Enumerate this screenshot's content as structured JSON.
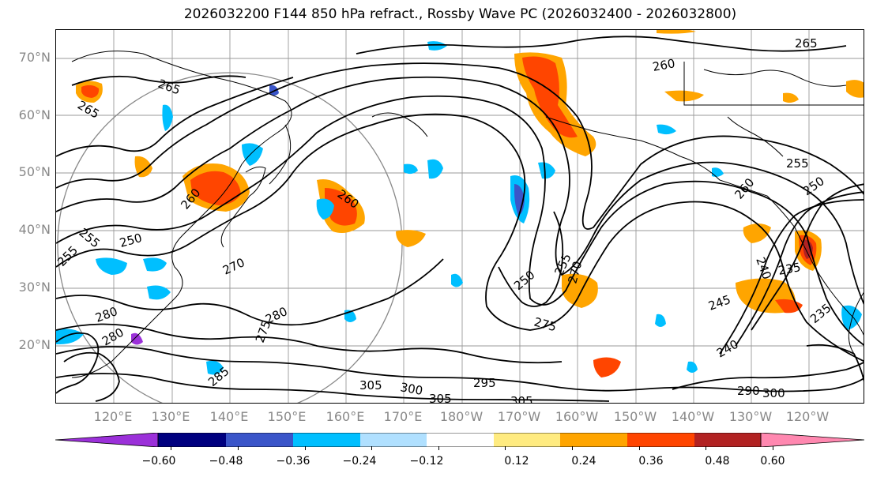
{
  "title": "2026032200 F144 850 hPa refract., Rossby Wave PC (2026032400 - 2026032800)",
  "lat_labels": [
    "70°N",
    "60°N",
    "50°N",
    "40°N",
    "30°N",
    "20°N"
  ],
  "lon_labels": [
    "120°E",
    "130°E",
    "140°E",
    "150°E",
    "160°E",
    "170°E",
    "180°W",
    "170°W",
    "160°W",
    "150°W",
    "140°W",
    "130°W",
    "120°W"
  ],
  "colorbar": {
    "tick_labels": [
      "−0.60",
      "−0.48",
      "−0.36",
      "−0.24",
      "−0.12",
      "0.12",
      "0.24",
      "0.36",
      "0.48",
      "0.60"
    ],
    "colors": [
      "#9b30d9",
      "#00007f",
      "#3a55c9",
      "#00bfff",
      "#b0e0ff",
      "#ffffff",
      "#ffeb80",
      "#ffa500",
      "#ff4500",
      "#b22222",
      "#ff88b0"
    ]
  },
  "contour_labels": [
    "265",
    "265",
    "265",
    "260",
    "260",
    "260",
    "260",
    "255",
    "255",
    "255",
    "255",
    "250",
    "250",
    "250",
    "245",
    "240",
    "240",
    "235",
    "235",
    "270",
    "270",
    "275",
    "275",
    "280",
    "280",
    "280",
    "285",
    "290",
    "295",
    "300",
    "300",
    "305",
    "305",
    "305"
  ]
}
